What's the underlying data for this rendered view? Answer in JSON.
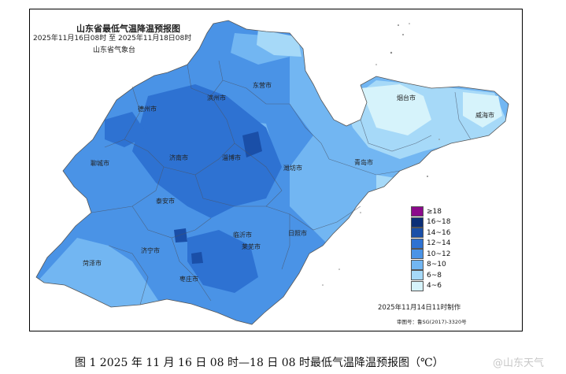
{
  "map": {
    "title": "山东省最低气温降温预报图",
    "period": "2025年11月16日08时  至  2025年11月18日08时",
    "issuer": "山东省气象台",
    "issued": "2025年11月14日11时制作",
    "approval": "审图号：鲁SG(2017)-3320号"
  },
  "legend": [
    {
      "label": "≥18",
      "color": "#8b0a8b"
    },
    {
      "label": "16~18",
      "color": "#0c2f77"
    },
    {
      "label": "14~16",
      "color": "#1a4fa8"
    },
    {
      "label": "12~14",
      "color": "#2e72d2"
    },
    {
      "label": "10~12",
      "color": "#4a93e6"
    },
    {
      "label": "8~10",
      "color": "#72b6f2"
    },
    {
      "label": "6~8",
      "color": "#a6d9f8"
    },
    {
      "label": "4~6",
      "color": "#d6f3fb"
    }
  ],
  "cities": [
    {
      "name": "东营市"
    },
    {
      "name": "滨州市"
    },
    {
      "name": "德州市"
    },
    {
      "name": "烟台市"
    },
    {
      "name": "威海市"
    },
    {
      "name": "聊城市"
    },
    {
      "name": "济南市"
    },
    {
      "name": "淄博市"
    },
    {
      "name": "潍坊市"
    },
    {
      "name": "青岛市"
    },
    {
      "name": "泰安市"
    },
    {
      "name": "莱芜市"
    },
    {
      "name": "日照市"
    },
    {
      "name": "济宁市"
    },
    {
      "name": "临沂市"
    },
    {
      "name": "菏泽市"
    },
    {
      "name": "枣庄市"
    }
  ],
  "caption": "图 1  2025 年 11 月 16 日 08 时—18 日 08 时最低气温降温预报图（℃）",
  "watermark": "@山东天气"
}
